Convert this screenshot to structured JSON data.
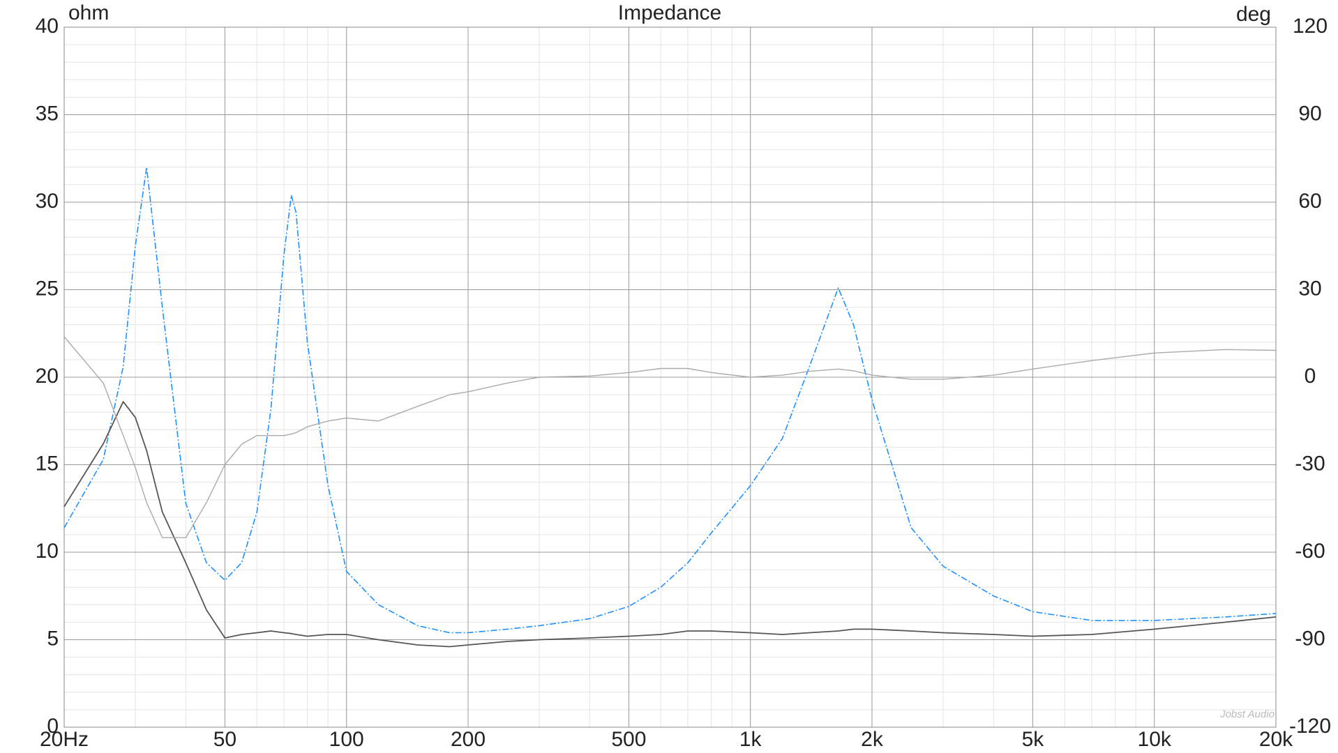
{
  "chart_data": {
    "type": "line",
    "title": "Impedance",
    "y_label": "ohm",
    "y2_label": "deg",
    "watermark": "Jobst Audio",
    "xscale": "log",
    "grid": true,
    "x": [
      20,
      25,
      28,
      30,
      32,
      35,
      40,
      45,
      50,
      55,
      60,
      65,
      70,
      73,
      75,
      80,
      90,
      100,
      120,
      150,
      180,
      200,
      250,
      300,
      400,
      500,
      600,
      700,
      800,
      1000,
      1200,
      1400,
      1650,
      1800,
      2000,
      2500,
      3000,
      4000,
      5000,
      7000,
      10000,
      15000,
      20000
    ],
    "series": [
      {
        "color": "#1e90ff",
        "dash": "9 3 2 3",
        "width": 1.6,
        "values": [
          11.4,
          15.3,
          20.6,
          27.5,
          32.0,
          24.0,
          12.8,
          9.4,
          8.4,
          9.4,
          12.3,
          18.2,
          27.0,
          30.4,
          29.4,
          22.0,
          13.8,
          8.9,
          7.0,
          5.8,
          5.4,
          5.4,
          5.6,
          5.8,
          6.2,
          6.9,
          8.0,
          9.4,
          11.1,
          13.8,
          16.5,
          20.6,
          25.1,
          23.0,
          18.7,
          11.4,
          9.2,
          7.5,
          6.6,
          6.1,
          6.1,
          6.3,
          6.5
        ]
      },
      {
        "color": "#555555",
        "width": 1.8,
        "values": [
          12.6,
          16.2,
          18.6,
          17.7,
          15.8,
          12.3,
          9.4,
          6.7,
          5.1,
          5.3,
          5.4,
          5.5,
          5.4,
          5.35,
          5.3,
          5.2,
          5.3,
          5.3,
          5.0,
          4.7,
          4.6,
          4.7,
          4.9,
          5.0,
          5.1,
          5.2,
          5.3,
          5.5,
          5.5,
          5.4,
          5.3,
          5.4,
          5.5,
          5.6,
          5.6,
          5.5,
          5.4,
          5.3,
          5.2,
          5.3,
          5.6,
          6.0,
          6.3
        ]
      },
      {
        "color": "#aaaaaa",
        "width": 1.4,
        "axis": "y2",
        "values": [
          13.9,
          -2,
          -20,
          -31,
          -43,
          -55,
          -55,
          -43,
          -30,
          -23,
          -20,
          -20,
          -20,
          -19.5,
          -19,
          -17,
          -15,
          -14,
          -15,
          -10,
          -6,
          -5,
          -2,
          0,
          0.4,
          1.6,
          3,
          3,
          1.6,
          0,
          0.7,
          2,
          2.8,
          2.2,
          0.7,
          -0.7,
          -0.7,
          0.7,
          2.8,
          5.7,
          8.3,
          9.5,
          9.2
        ]
      }
    ],
    "xlim": [
      20,
      20000
    ],
    "xticks": [
      {
        "value": 20,
        "label": "20Hz"
      },
      50,
      100,
      200,
      500,
      {
        "value": 1000,
        "label": "1k"
      },
      {
        "value": 2000,
        "label": "2k"
      },
      {
        "value": 5000,
        "label": "5k"
      },
      {
        "value": 10000,
        "label": "10k"
      },
      {
        "value": 20000,
        "label": "20k"
      }
    ],
    "ylim": [
      0,
      40
    ],
    "yticks": [
      0,
      5,
      10,
      15,
      20,
      25,
      30,
      35,
      40
    ],
    "y2lim": [
      -120,
      120
    ],
    "y2ticks": [
      -120,
      -90,
      -60,
      -30,
      0,
      30,
      60,
      90,
      120
    ]
  }
}
